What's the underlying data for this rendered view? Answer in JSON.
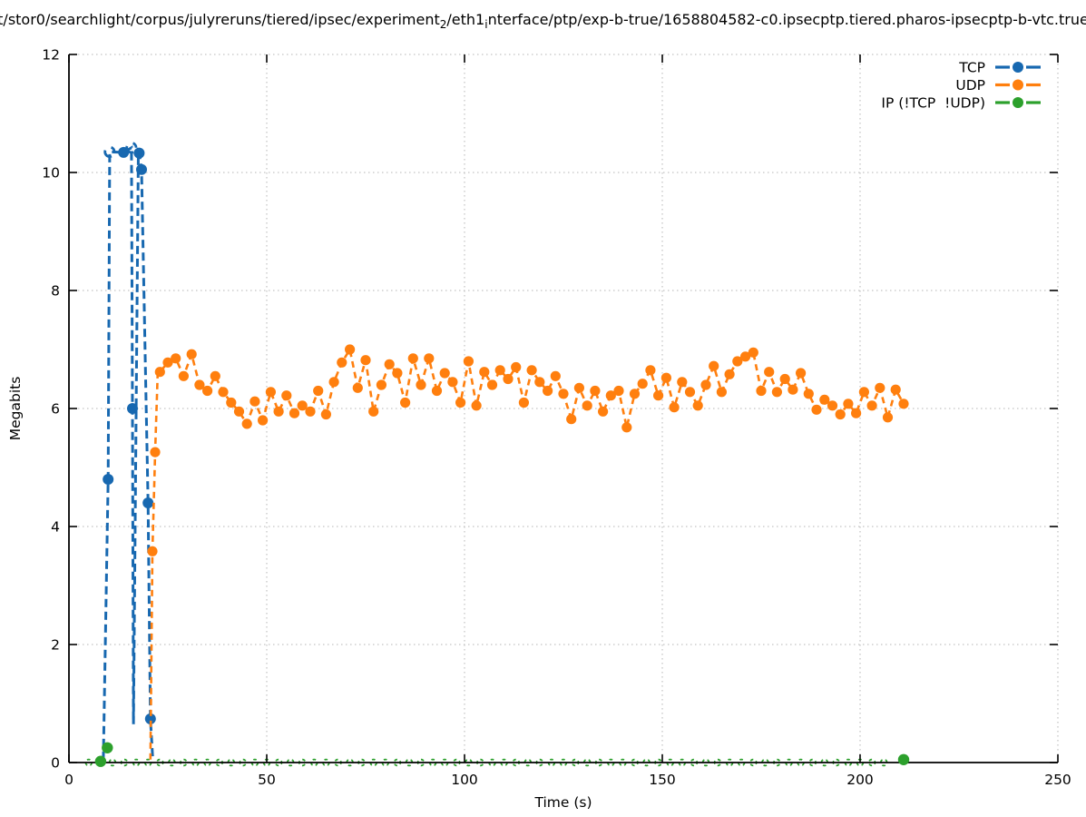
{
  "title": {
    "parts": [
      {
        "text": "t/stor0/searchlight/corpus/julyreruns/tiered/ipsec/experiment"
      },
      {
        "sub": "2"
      },
      {
        "text": "/eth1"
      },
      {
        "sub": "i"
      },
      {
        "text": "nterface/ptp/exp-b-true/1658804582-c0.ipsecptp.tiered.pharos-ipsecptp-b-vtc.true"
      }
    ],
    "flat": "t/stor0/searchlight/corpus/julyreruns/tiered/ipsec/experiment₂/eth1ᵢnterface/ptp/exp-b-true/1658804582-c0.ipsecptp.tiered.pharos-ipsecptp-b-vtc.true"
  },
  "chart_data": {
    "type": "line",
    "xlabel": "Time (s)",
    "ylabel": "Megabits",
    "xlim": [
      0,
      250
    ],
    "ylim": [
      0,
      12
    ],
    "x_ticks": [
      0,
      50,
      100,
      150,
      200,
      250
    ],
    "y_ticks": [
      0,
      2,
      4,
      6,
      8,
      10,
      12
    ],
    "grid": true,
    "legend_position": "top-right-inside",
    "colors": {
      "tcp": "#1768b0",
      "udp": "#ff7f0e",
      "ip": "#2ca02c",
      "grid": "#b5b5b5",
      "axis": "#000000"
    },
    "series": [
      {
        "name": "TCP",
        "style": "dashed-linespoints",
        "color_key": "tcp",
        "points": [
          [
            8.7,
            0.05
          ],
          [
            9.9,
            4.8
          ],
          [
            10.3,
            10.35
          ],
          [
            13.8,
            10.34
          ],
          [
            15.8,
            10.42
          ],
          [
            16.05,
            6.0
          ],
          [
            16.3,
            0.65
          ],
          [
            17.55,
            10.35
          ],
          [
            17.75,
            10.33
          ],
          [
            18.35,
            10.05
          ],
          [
            20.0,
            4.4
          ],
          [
            20.6,
            0.74
          ],
          [
            21.2,
            0.05
          ]
        ],
        "dot_markers": [
          [
            9.9,
            4.8
          ],
          [
            13.8,
            10.34
          ],
          [
            16.05,
            6.0
          ],
          [
            17.75,
            10.33
          ],
          [
            18.35,
            10.05
          ],
          [
            20.0,
            4.4
          ],
          [
            20.6,
            0.74
          ]
        ],
        "arc_markers": [
          [
            10.3,
            10.35
          ],
          [
            15.8,
            10.42
          ]
        ]
      },
      {
        "name": "UDP",
        "style": "dashed-linespoints",
        "color_key": "udp",
        "lead_points": [
          [
            20.6,
            0.05
          ],
          [
            21.1,
            3.58
          ],
          [
            21.8,
            5.26
          ],
          [
            22.4,
            6.55
          ]
        ],
        "lead_markers": [
          [
            21.1,
            3.58
          ],
          [
            21.8,
            5.26
          ]
        ],
        "band_points": [
          [
            23,
            6.62
          ],
          [
            25,
            6.78
          ],
          [
            27,
            6.85
          ],
          [
            29,
            6.55
          ],
          [
            31,
            6.92
          ],
          [
            33,
            6.4
          ],
          [
            35,
            6.3
          ],
          [
            37,
            6.55
          ],
          [
            39,
            6.28
          ],
          [
            41,
            6.1
          ],
          [
            43,
            5.95
          ],
          [
            45,
            5.74
          ],
          [
            47,
            6.12
          ],
          [
            49,
            5.8
          ],
          [
            51,
            6.28
          ],
          [
            53,
            5.95
          ],
          [
            55,
            6.22
          ],
          [
            57,
            5.92
          ],
          [
            59,
            6.05
          ],
          [
            61,
            5.95
          ],
          [
            63,
            6.3
          ],
          [
            65,
            5.9
          ],
          [
            67,
            6.45
          ],
          [
            69,
            6.78
          ],
          [
            71,
            7.0
          ],
          [
            73,
            6.35
          ],
          [
            75,
            6.82
          ],
          [
            77,
            5.95
          ],
          [
            79,
            6.4
          ],
          [
            81,
            6.75
          ],
          [
            83,
            6.6
          ],
          [
            85,
            6.1
          ],
          [
            87,
            6.85
          ],
          [
            89,
            6.4
          ],
          [
            91,
            6.85
          ],
          [
            93,
            6.3
          ],
          [
            95,
            6.6
          ],
          [
            97,
            6.45
          ],
          [
            99,
            6.1
          ],
          [
            101,
            6.8
          ],
          [
            103,
            6.05
          ],
          [
            105,
            6.62
          ],
          [
            107,
            6.4
          ],
          [
            109,
            6.65
          ],
          [
            111,
            6.5
          ],
          [
            113,
            6.7
          ],
          [
            115,
            6.1
          ],
          [
            117,
            6.65
          ],
          [
            119,
            6.45
          ],
          [
            121,
            6.3
          ],
          [
            123,
            6.55
          ],
          [
            125,
            6.25
          ],
          [
            127,
            5.82
          ],
          [
            129,
            6.35
          ],
          [
            131,
            6.05
          ],
          [
            133,
            6.3
          ],
          [
            135,
            5.95
          ],
          [
            137,
            6.22
          ],
          [
            139,
            6.3
          ],
          [
            141,
            5.68
          ],
          [
            143,
            6.25
          ],
          [
            145,
            6.42
          ],
          [
            147,
            6.65
          ],
          [
            149,
            6.22
          ],
          [
            151,
            6.52
          ],
          [
            153,
            6.02
          ],
          [
            155,
            6.45
          ],
          [
            157,
            6.28
          ],
          [
            159,
            6.05
          ],
          [
            161,
            6.4
          ],
          [
            163,
            6.72
          ],
          [
            165,
            6.28
          ],
          [
            167,
            6.58
          ],
          [
            169,
            6.8
          ],
          [
            171,
            6.88
          ],
          [
            173,
            6.95
          ],
          [
            175,
            6.3
          ],
          [
            177,
            6.62
          ],
          [
            179,
            6.28
          ],
          [
            181,
            6.5
          ],
          [
            183,
            6.32
          ],
          [
            185,
            6.6
          ],
          [
            187,
            6.25
          ],
          [
            189,
            5.98
          ],
          [
            191,
            6.15
          ],
          [
            193,
            6.05
          ],
          [
            195,
            5.9
          ],
          [
            197,
            6.08
          ],
          [
            199,
            5.92
          ],
          [
            201,
            6.28
          ],
          [
            203,
            6.05
          ],
          [
            205,
            6.35
          ],
          [
            207,
            5.85
          ],
          [
            209,
            6.32
          ],
          [
            211,
            6.08
          ]
        ]
      },
      {
        "name": "IP (!TCP  !UDP)",
        "style": "dashed-linespoints",
        "color_key": "ip",
        "baseline_arcs": {
          "from": 5,
          "to": 207,
          "step": 3,
          "y": 0.0
        },
        "filled_dots": [
          [
            8.0,
            0.02
          ],
          [
            9.7,
            0.25
          ],
          [
            211,
            0.05
          ]
        ]
      }
    ]
  }
}
